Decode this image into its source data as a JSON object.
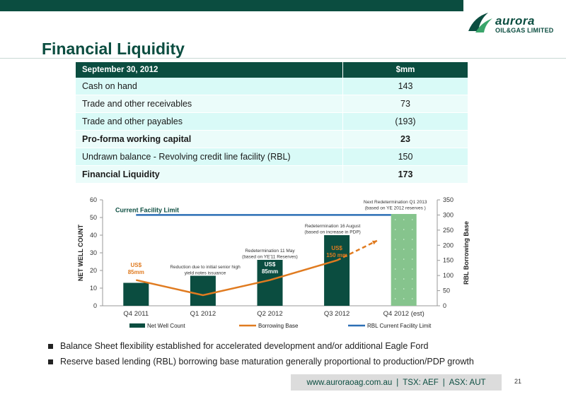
{
  "brand": {
    "logo_name": "aurora",
    "logo_sub": "OIL&GAS LIMITED",
    "brand_color": "#0b4d40"
  },
  "page": {
    "title": "Financial Liquidity",
    "page_number": "21"
  },
  "table": {
    "header": [
      "September 30, 2012",
      "$mm"
    ],
    "rows": [
      {
        "label": "Cash on hand",
        "value": "143"
      },
      {
        "label": "Trade and other receivables",
        "value": "73"
      },
      {
        "label": "Trade and other payables",
        "value": "(193)"
      },
      {
        "label": "Pro-forma working capital",
        "value": "23"
      },
      {
        "label": "Undrawn balance - Revolving credit line facility (RBL)",
        "value": "150"
      },
      {
        "label": "Financial Liquidity",
        "value": "173"
      }
    ]
  },
  "chart_data": {
    "type": "bar",
    "categories": [
      "Q4 2011",
      "Q1 2012",
      "Q2 2012",
      "Q3 2012",
      "Q4 2012 (est)"
    ],
    "ylabel": "NET WELL COUNT",
    "y2label": "RBL Borrowing Base",
    "ylim": [
      0,
      60
    ],
    "yticks": [
      "0",
      "10",
      "20",
      "30",
      "40",
      "50",
      "60"
    ],
    "y2lim": [
      0,
      350
    ],
    "y2ticks": [
      "0",
      "50",
      "100",
      "150",
      "200",
      "250",
      "300",
      "350"
    ],
    "series": [
      {
        "name": "Net Well Count",
        "kind": "bar",
        "axis": "left",
        "values": [
          13,
          17,
          26,
          40,
          52
        ],
        "color": "#0b4d40",
        "estimate_color": "#86c48d"
      },
      {
        "name": "Borrowing Base",
        "kind": "line",
        "axis": "right",
        "values": [
          85,
          35,
          85,
          150,
          null
        ],
        "projection": [
          150,
          215
        ],
        "color": "#e07b20"
      },
      {
        "name": "RBL Current Facility Limit",
        "kind": "line",
        "axis": "right",
        "values": [
          300,
          300,
          300,
          300,
          300
        ],
        "color": "#2c6fb5"
      }
    ],
    "annotations": {
      "current_limit": "Current Facility Limit",
      "us_q4": [
        "US$",
        "85mm"
      ],
      "reduction": [
        "Reduction due to initial senior high",
        "yield notes issuance"
      ],
      "redet_may": [
        "Redetermination 11 May",
        "(based on YE'11 Reserves)"
      ],
      "us_q2": [
        "US$",
        "85mm"
      ],
      "redet_aug": [
        "Redetermination 16 August",
        "(based on increase in PDP)"
      ],
      "us_q3": [
        "US$",
        "150 mm"
      ],
      "next_redet": [
        "Next Redetermination Q1 2013",
        "(based on YE 2012 reserves )"
      ]
    },
    "legend_placement": "bottom"
  },
  "bullets": [
    "Balance Sheet flexibility established for accelerated development and/or additional Eagle Ford",
    "Reserve based lending (RBL) borrowing base maturation generally proportional to production/PDP growth"
  ],
  "footer": {
    "website": "www.auroraoag.com.au",
    "sep": "|",
    "tsx": "TSX: AEF",
    "asx": "ASX: AUT"
  }
}
